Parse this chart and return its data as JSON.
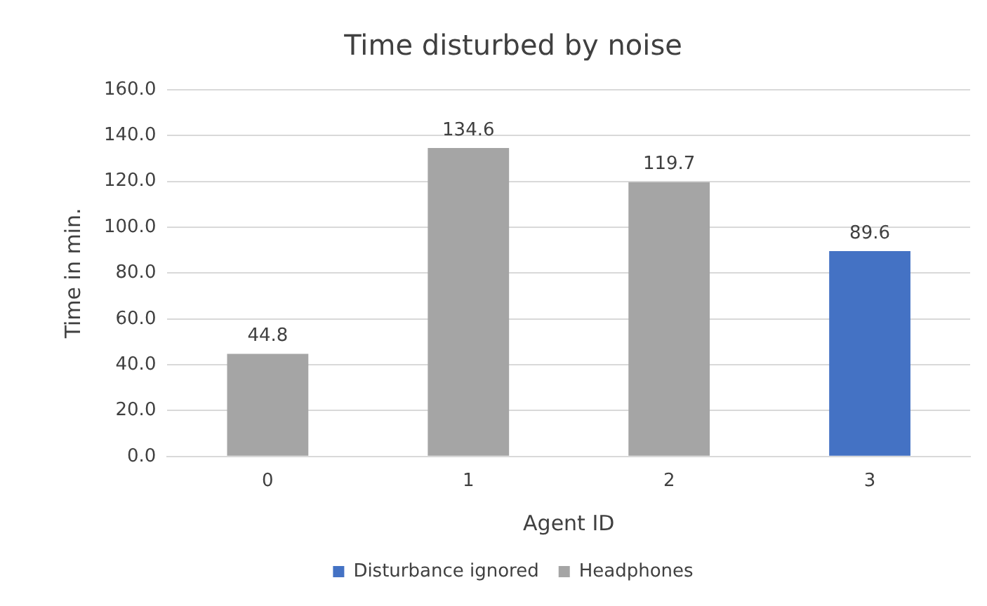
{
  "chart_data": {
    "type": "bar",
    "title": "Time disturbed by noise",
    "xlabel": "Agent ID",
    "ylabel": "Time in min.",
    "categories": [
      "0",
      "1",
      "2",
      "3"
    ],
    "series": [
      {
        "name": "Disturbance ignored",
        "color": "#4472c4",
        "values": [
          null,
          null,
          null,
          89.6
        ]
      },
      {
        "name": "Headphones",
        "color": "#a5a5a5",
        "values": [
          44.8,
          134.6,
          119.7,
          null
        ]
      }
    ],
    "ylim": [
      0,
      160
    ],
    "yticks": [
      {
        "value": 0,
        "label": "0.0"
      },
      {
        "value": 20,
        "label": "20.0"
      },
      {
        "value": 40,
        "label": "40.0"
      },
      {
        "value": 60,
        "label": "60.0"
      },
      {
        "value": 80,
        "label": "80.0"
      },
      {
        "value": 100,
        "label": "100.0"
      },
      {
        "value": 120,
        "label": "120.0"
      },
      {
        "value": 140,
        "label": "140.0"
      },
      {
        "value": 160,
        "label": "160.0"
      }
    ],
    "grid": "y",
    "legend": "bottom",
    "data_labels": true
  }
}
